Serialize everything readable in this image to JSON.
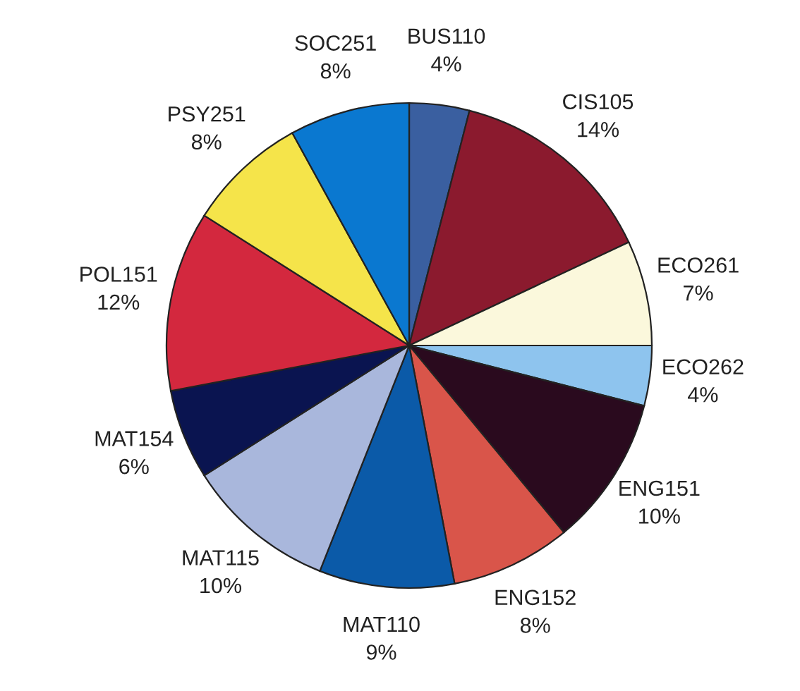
{
  "chart_data": {
    "type": "pie",
    "categories": [
      "BUS110",
      "CIS105",
      "ECO261",
      "ECO262",
      "ENG151",
      "ENG152",
      "MAT110",
      "MAT115",
      "MAT154",
      "POL151",
      "PSY251",
      "SOC251"
    ],
    "values": [
      4,
      14,
      7,
      4,
      10,
      8,
      9,
      10,
      6,
      12,
      8,
      8
    ],
    "value_labels": [
      "4%",
      "14%",
      "7%",
      "4%",
      "10%",
      "8%",
      "9%",
      "10%",
      "6%",
      "12%",
      "8%",
      "8%"
    ],
    "colors": [
      "#3a5fa0",
      "#8b1a2e",
      "#fbf8dc",
      "#8ec4ee",
      "#2a0a1e",
      "#d9554a",
      "#0b5aa8",
      "#a9b7dc",
      "#0a1450",
      "#d3283e",
      "#f5e44a",
      "#0a78d0"
    ]
  }
}
